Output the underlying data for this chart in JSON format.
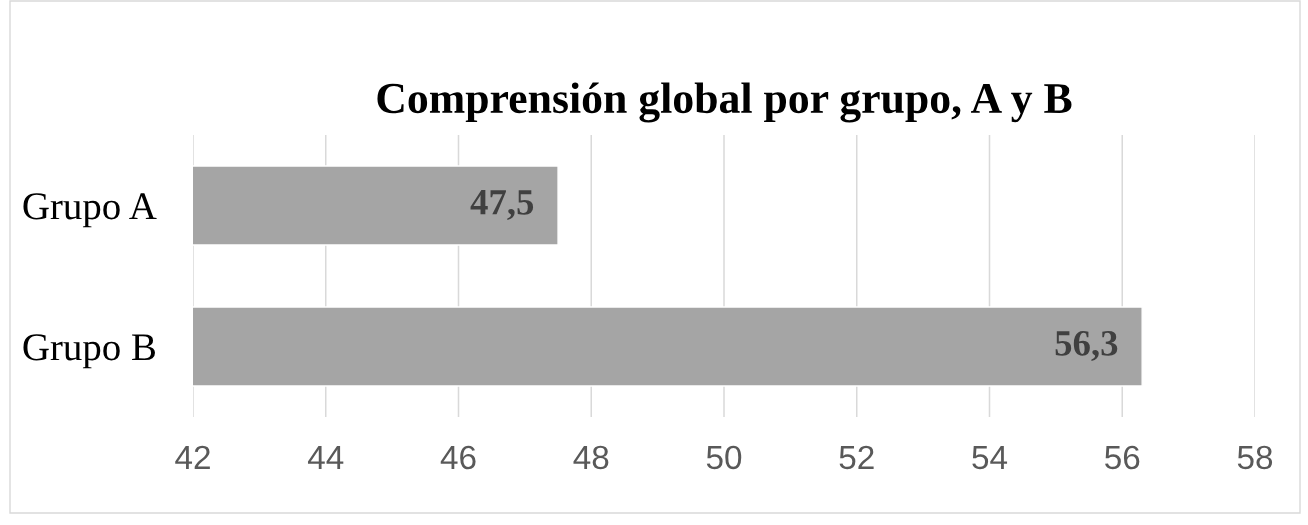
{
  "chart_data": {
    "type": "bar",
    "orientation": "horizontal",
    "title": "Comprensión global por grupo, A y B",
    "categories": [
      "Grupo A",
      "Grupo B"
    ],
    "values": [
      47.5,
      56.3
    ],
    "color": "#a5a5a5",
    "value_labels": [
      "47,5",
      "56,3"
    ],
    "xlim": [
      42,
      58
    ],
    "xticks": [
      42,
      44,
      46,
      48,
      50,
      52,
      54,
      56,
      58
    ],
    "grid": "x"
  }
}
